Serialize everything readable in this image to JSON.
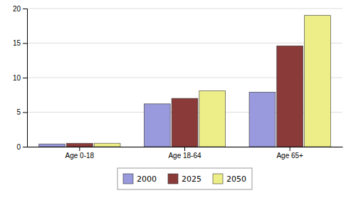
{
  "chart_data": {
    "type": "bar",
    "categories": [
      "Age 0-18",
      "Age 18-64",
      "Age 65+"
    ],
    "series": [
      {
        "name": "2000",
        "color": "#9999dd",
        "values": [
          0.4,
          6.2,
          7.9
        ]
      },
      {
        "name": "2025",
        "color": "#8b3a3a",
        "values": [
          0.5,
          7.0,
          14.6
        ]
      },
      {
        "name": "2050",
        "color": "#eeee88",
        "values": [
          0.5,
          8.1,
          19.0
        ]
      }
    ],
    "ylim": [
      0,
      20
    ],
    "yticks": [
      0,
      5,
      10,
      15,
      20
    ],
    "grid": true,
    "legend": "bottom"
  }
}
